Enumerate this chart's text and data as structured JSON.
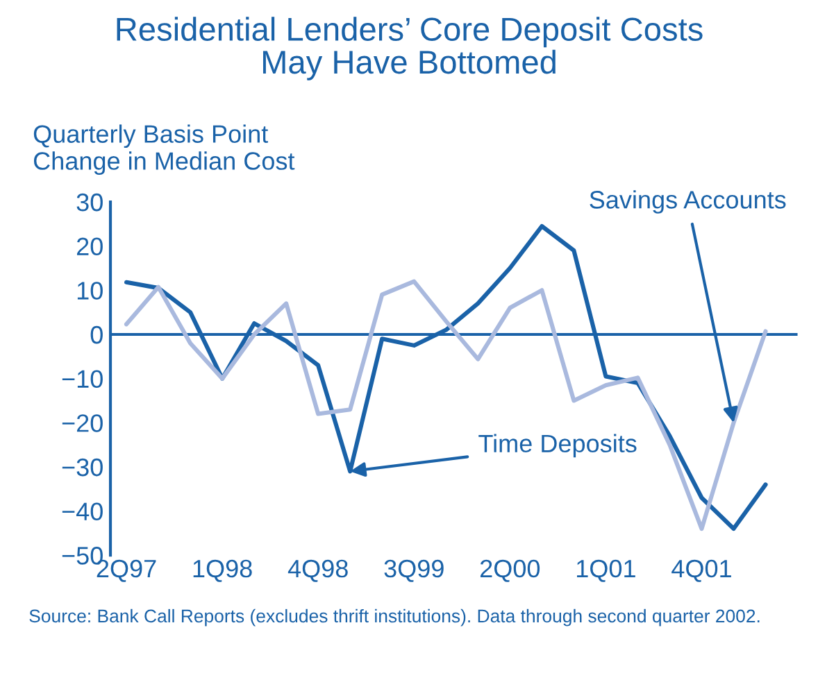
{
  "chart_data": {
    "type": "line",
    "title": "Residential Lenders’ Core Deposit Costs\nMay Have Bottomed",
    "ylabel": "Quarterly Basis Point\nChange in Median Cost",
    "categories": [
      "2Q97",
      null,
      null,
      "1Q98",
      null,
      null,
      "4Q98",
      null,
      null,
      "3Q99",
      null,
      null,
      "2Q00",
      null,
      null,
      "1Q01",
      null,
      null,
      "4Q01",
      null,
      null
    ],
    "ylim": [
      -50,
      30
    ],
    "yticks": [
      -50,
      -40,
      -30,
      -20,
      -10,
      0,
      10,
      20,
      30
    ],
    "ref_lines": [
      {
        "axis": "y",
        "value": 0,
        "color": "#1a62a8"
      }
    ],
    "series": [
      {
        "name": "Time Deposits",
        "color": "#1a62a8",
        "values": [
          11.8,
          10.5,
          5,
          -10,
          2.5,
          -1.5,
          -7,
          -31,
          -1,
          -2.5,
          1,
          7,
          15,
          24.5,
          19,
          -9.5,
          -11,
          -23,
          -37,
          -44,
          -34
        ]
      },
      {
        "name": "Savings Accounts",
        "color": "#a9b9de",
        "values": [
          2.3,
          10.7,
          -2,
          -10,
          0,
          7,
          -18,
          -17,
          9,
          12,
          3,
          -5.6,
          6,
          10,
          -15,
          -11.5,
          -9.8,
          -25,
          -44,
          -20,
          0.7
        ]
      }
    ],
    "annotations": [
      "Source: Bank Call Reports (excludes thrift institutions). Data through second quarter 2002."
    ]
  }
}
